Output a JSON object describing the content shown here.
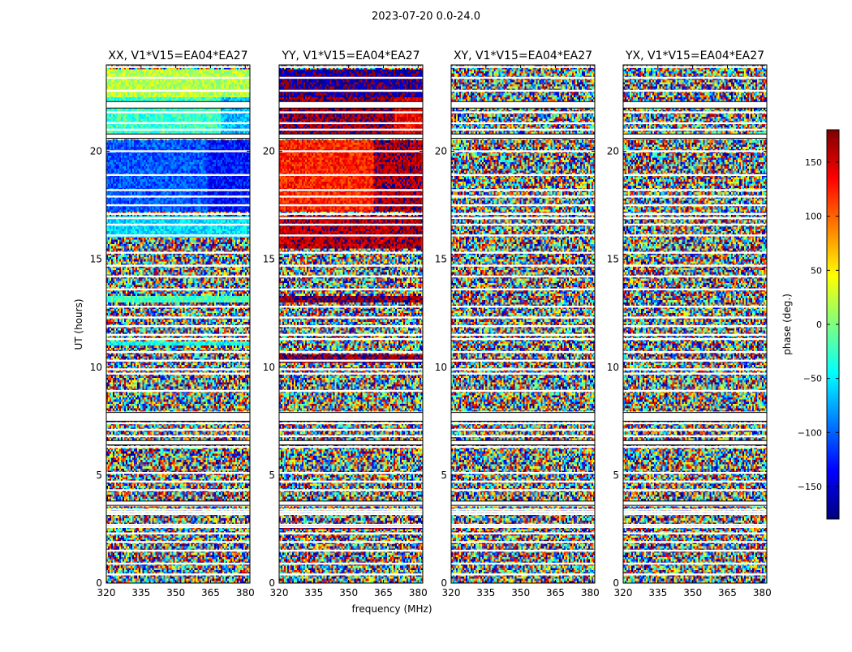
{
  "figure_title": "2023-07-20 0.0-24.0",
  "chart_data": {
    "type": "heatmap",
    "title": "2023-07-20 0.0-24.0",
    "xlabel": "frequency (MHz)",
    "ylabel": "UT (hours)",
    "xlim": [
      320,
      382
    ],
    "ylim": [
      0,
      24
    ],
    "x_ticks": [
      320,
      335,
      350,
      365,
      380
    ],
    "y_ticks": [
      0,
      5,
      10,
      15,
      20
    ],
    "panels": [
      {
        "title": "XX, V1*V15=EA04*EA27",
        "regions": [
          {
            "t0": 17.2,
            "t1": 20.5,
            "f0": 320,
            "f1": 364,
            "phase": -105
          },
          {
            "t0": 17.2,
            "t1": 20.5,
            "f0": 364,
            "f1": 382,
            "phase": -130
          },
          {
            "t0": 20.8,
            "t1": 22.5,
            "f0": 320,
            "f1": 369,
            "phase": -25
          },
          {
            "t0": 20.8,
            "t1": 22.5,
            "f0": 369,
            "f1": 382,
            "phase": -70
          },
          {
            "t0": 22.5,
            "t1": 23.8,
            "f0": 320,
            "f1": 382,
            "phase": 20
          },
          {
            "t0": 16.0,
            "t1": 17.0,
            "f0": 320,
            "f1": 382,
            "phase": -55
          },
          {
            "t0": 13.0,
            "t1": 13.3,
            "f0": 320,
            "f1": 382,
            "phase": -20
          },
          {
            "t0": 11.0,
            "t1": 11.2,
            "f0": 320,
            "f1": 382,
            "phase": -40
          }
        ]
      },
      {
        "title": "YY, V1*V15=EA04*EA27",
        "regions": [
          {
            "t0": 17.2,
            "t1": 20.5,
            "f0": 320,
            "f1": 361,
            "phase": 125
          },
          {
            "t0": 17.2,
            "t1": 20.5,
            "f0": 361,
            "f1": 382,
            "phase": 165
          },
          {
            "t0": 20.8,
            "t1": 22.5,
            "f0": 320,
            "f1": 369,
            "phase": 170
          },
          {
            "t0": 20.8,
            "t1": 22.5,
            "f0": 369,
            "f1": 382,
            "phase": 140
          },
          {
            "t0": 22.5,
            "t1": 23.8,
            "f0": 320,
            "f1": 382,
            "phase": -170
          },
          {
            "t0": 15.5,
            "t1": 17.0,
            "f0": 320,
            "f1": 382,
            "phase": 160
          },
          {
            "t0": 13.0,
            "t1": 13.3,
            "f0": 320,
            "f1": 382,
            "phase": 175
          },
          {
            "t0": 10.2,
            "t1": 10.6,
            "f0": 320,
            "f1": 382,
            "phase": 175
          },
          {
            "t0": 2.5,
            "t1": 2.7,
            "f0": 320,
            "f1": 382,
            "phase": 175
          }
        ]
      },
      {
        "title": "XY, V1*V15=EA04*EA27",
        "regions": []
      },
      {
        "title": "YX, V1*V15=EA04*EA27",
        "regions": []
      }
    ],
    "flagged_rows_hours": [
      23.9,
      23.4,
      22.8,
      21.8,
      21.3,
      21.0,
      20.6,
      20.0,
      18.9,
      18.2,
      17.9,
      17.5,
      17.1,
      16.9,
      16.6,
      16.1,
      15.3,
      14.7,
      14.2,
      13.6,
      12.8,
      12.3,
      11.9,
      11.5,
      11.3,
      10.7,
      10.3,
      9.9,
      9.7,
      8.9,
      7.9,
      7.7,
      7.4,
      7.1,
      6.8,
      6.5,
      6.3,
      5.1,
      4.7,
      4.3,
      3.6,
      3.4,
      3.3,
      3.2,
      2.7,
      2.6,
      2.3,
      1.9,
      1.5,
      0.9,
      0.4
    ],
    "flagged_bands_hours": [
      [
        20.6,
        20.8
      ],
      [
        22.0,
        22.3
      ],
      [
        7.5,
        7.9
      ],
      [
        6.4,
        6.6
      ],
      [
        3.6,
        3.8
      ]
    ],
    "colorbar": {
      "label": "phase (deg.)",
      "vmin": -180,
      "vmax": 180,
      "ticks": [
        -150,
        -100,
        -50,
        0,
        50,
        100,
        150
      ],
      "tick_labels": [
        "−150",
        "−100",
        "−50",
        "0",
        "50",
        "100",
        "150"
      ],
      "colormap": [
        "#00007f",
        "#0000ff",
        "#007fff",
        "#00ffff",
        "#7fff7f",
        "#ffff00",
        "#ff7f00",
        "#ff0000",
        "#7f0000"
      ]
    }
  }
}
